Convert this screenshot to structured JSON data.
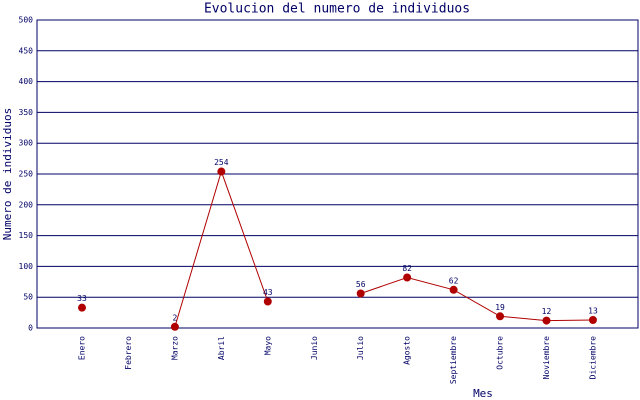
{
  "chart_data": {
    "type": "line",
    "title": "Evolucion del numero de individuos",
    "x_label": "Mes",
    "y_label": "Numero de individuos",
    "categories": [
      "Enero",
      "Febrero",
      "Marzo",
      "Abril",
      "Mayo",
      "Junio",
      "Julio",
      "Agosto",
      "Septiembre",
      "Octubre",
      "Noviembre",
      "Diciembre"
    ],
    "values": [
      33,
      null,
      2,
      254,
      43,
      null,
      56,
      82,
      62,
      19,
      12,
      13
    ],
    "color": "#b00000",
    "ylim": [
      0,
      500
    ],
    "yticks": [
      0,
      50,
      100,
      150,
      200,
      250,
      300,
      350,
      400,
      450,
      500
    ],
    "grid": true
  }
}
